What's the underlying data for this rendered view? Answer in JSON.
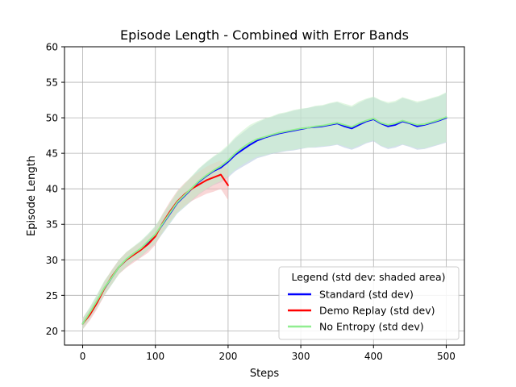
{
  "chart_data": {
    "type": "line",
    "title": "Episode Length - Combined with Error Bands",
    "xlabel": "Steps",
    "ylabel": "Episode Length",
    "xlim": [
      -25,
      525
    ],
    "ylim": [
      18,
      60
    ],
    "xticks": [
      0,
      100,
      200,
      300,
      400,
      500
    ],
    "yticks": [
      20,
      25,
      30,
      35,
      40,
      45,
      50,
      55,
      60
    ],
    "grid": true,
    "legend": {
      "title": "Legend (std dev: shaded area)",
      "placement": "lower-right"
    },
    "series": [
      {
        "name": "Standard (std dev)",
        "color": "#0000ff",
        "band_color": "#b0c4de",
        "x": [
          0,
          10,
          20,
          30,
          40,
          50,
          60,
          70,
          80,
          90,
          100,
          110,
          120,
          130,
          140,
          150,
          160,
          170,
          180,
          190,
          200,
          210,
          220,
          230,
          240,
          250,
          260,
          270,
          280,
          290,
          300,
          310,
          320,
          330,
          340,
          350,
          360,
          370,
          380,
          390,
          400,
          410,
          420,
          430,
          440,
          450,
          460,
          470,
          480,
          490,
          500
        ],
        "y": [
          21.0,
          22.5,
          24.2,
          26.0,
          27.5,
          29.0,
          30.0,
          30.8,
          31.5,
          32.5,
          33.5,
          35.0,
          36.5,
          38.0,
          39.0,
          40.0,
          41.0,
          41.8,
          42.5,
          43.0,
          43.8,
          44.8,
          45.5,
          46.2,
          46.8,
          47.2,
          47.5,
          47.8,
          48.0,
          48.2,
          48.4,
          48.6,
          48.7,
          48.8,
          49.0,
          49.2,
          48.8,
          48.5,
          49.0,
          49.5,
          49.8,
          49.2,
          48.8,
          49.0,
          49.5,
          49.2,
          48.8,
          49.0,
          49.3,
          49.6,
          50.0
        ],
        "std": [
          0.8,
          0.8,
          0.9,
          1.0,
          1.0,
          1.0,
          1.0,
          1.0,
          1.1,
          1.1,
          1.2,
          1.3,
          1.4,
          1.5,
          1.6,
          1.7,
          1.8,
          1.9,
          2.0,
          2.1,
          2.2,
          2.3,
          2.4,
          2.5,
          2.5,
          2.6,
          2.6,
          2.7,
          2.7,
          2.8,
          2.8,
          2.8,
          2.9,
          2.9,
          3.0,
          3.0,
          3.0,
          3.0,
          3.1,
          3.1,
          3.1,
          3.2,
          3.2,
          3.2,
          3.3,
          3.3,
          3.3,
          3.4,
          3.4,
          3.4,
          3.5
        ]
      },
      {
        "name": "Demo Replay (std dev)",
        "color": "#ff0000",
        "band_color": "#f4b6b6",
        "x": [
          0,
          10,
          20,
          30,
          40,
          50,
          60,
          70,
          80,
          90,
          100,
          110,
          120,
          130,
          140,
          150,
          160,
          170,
          180,
          190,
          200
        ],
        "y": [
          21.0,
          22.3,
          24.0,
          26.0,
          27.6,
          29.0,
          30.0,
          30.7,
          31.4,
          32.2,
          33.3,
          35.2,
          36.8,
          38.2,
          39.2,
          40.0,
          40.6,
          41.2,
          41.6,
          42.0,
          40.5
        ],
        "std": [
          0.8,
          0.8,
          0.9,
          1.0,
          1.0,
          1.0,
          1.1,
          1.1,
          1.1,
          1.2,
          1.2,
          1.3,
          1.4,
          1.5,
          1.6,
          1.7,
          1.8,
          1.9,
          2.0,
          2.0,
          2.1
        ]
      },
      {
        "name": "No Entropy (std dev)",
        "color": "#90ee90",
        "band_color": "#c8f0c8",
        "x": [
          0,
          10,
          20,
          30,
          40,
          50,
          60,
          70,
          80,
          90,
          100,
          110,
          120,
          130,
          140,
          150,
          160,
          170,
          180,
          190,
          200,
          210,
          220,
          230,
          240,
          250,
          260,
          270,
          280,
          290,
          300,
          310,
          320,
          330,
          340,
          350,
          360,
          370,
          380,
          390,
          400,
          410,
          420,
          430,
          440,
          450,
          460,
          470,
          480,
          490,
          500
        ],
        "y": [
          21.0,
          22.6,
          24.3,
          26.1,
          27.5,
          29.0,
          30.1,
          30.9,
          31.6,
          32.6,
          33.6,
          35.1,
          36.6,
          38.1,
          39.1,
          40.1,
          41.1,
          41.9,
          42.6,
          43.2,
          44.0,
          45.0,
          45.8,
          46.5,
          47.0,
          47.3,
          47.6,
          47.9,
          48.1,
          48.3,
          48.5,
          48.6,
          48.8,
          48.9,
          49.1,
          49.3,
          49.0,
          48.7,
          49.2,
          49.6,
          49.9,
          49.3,
          49.0,
          49.2,
          49.6,
          49.3,
          49.0,
          49.1,
          49.4,
          49.7,
          50.1
        ],
        "std": [
          0.8,
          0.8,
          0.9,
          1.0,
          1.0,
          1.0,
          1.0,
          1.0,
          1.1,
          1.1,
          1.2,
          1.3,
          1.4,
          1.5,
          1.6,
          1.7,
          1.8,
          1.9,
          2.0,
          2.1,
          2.2,
          2.3,
          2.4,
          2.5,
          2.5,
          2.6,
          2.6,
          2.7,
          2.7,
          2.8,
          2.8,
          2.8,
          2.9,
          2.9,
          3.0,
          3.0,
          3.0,
          3.0,
          3.1,
          3.1,
          3.1,
          3.2,
          3.2,
          3.2,
          3.3,
          3.3,
          3.3,
          3.4,
          3.4,
          3.4,
          3.5
        ]
      }
    ]
  }
}
